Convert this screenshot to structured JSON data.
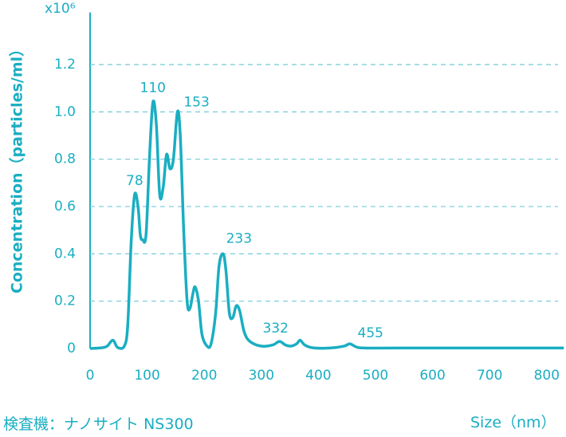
{
  "chart_data": {
    "type": "line",
    "multiplier_label": "x10⁶",
    "y_label": "Concentration（particles/ml）",
    "x_label": "Size（nm）",
    "footnote": "検査機：ナノサイト NS300",
    "color": "#1aaec2",
    "grid": true,
    "xlim": [
      0,
      830
    ],
    "ylim": [
      0,
      1.42
    ],
    "xticks": [
      0,
      100,
      200,
      300,
      400,
      500,
      600,
      700,
      800
    ],
    "yticks": [
      0,
      0.2,
      0.4,
      0.6,
      0.8,
      {
        "value": 1,
        "label": "1.0"
      },
      1.2
    ],
    "x": [
      0,
      20,
      30,
      40,
      48,
      60,
      66,
      72,
      78,
      84,
      88,
      92,
      98,
      104,
      110,
      116,
      122,
      128,
      134,
      140,
      146,
      153,
      158,
      164,
      170,
      175,
      180,
      184,
      190,
      196,
      205,
      212,
      220,
      226,
      233,
      238,
      244,
      250,
      256,
      262,
      270,
      280,
      300,
      320,
      332,
      342,
      352,
      362,
      368,
      376,
      390,
      420,
      445,
      455,
      465,
      480,
      550,
      830
    ],
    "values": [
      0,
      0.003,
      0.01,
      0.035,
      0.005,
      0.01,
      0.1,
      0.45,
      0.65,
      0.6,
      0.48,
      0.46,
      0.48,
      0.8,
      1.04,
      0.95,
      0.65,
      0.68,
      0.82,
      0.76,
      0.8,
      1.0,
      0.9,
      0.5,
      0.2,
      0.17,
      0.23,
      0.26,
      0.2,
      0.06,
      0.01,
      0.02,
      0.15,
      0.35,
      0.4,
      0.33,
      0.15,
      0.13,
      0.18,
      0.16,
      0.07,
      0.03,
      0.01,
      0.015,
      0.03,
      0.015,
      0.01,
      0.02,
      0.035,
      0.015,
      0.003,
      0.002,
      0.01,
      0.02,
      0.008,
      0.002,
      0.002,
      0.002
    ],
    "peak_labels": [
      78,
      110,
      153,
      233,
      332,
      455
    ]
  }
}
